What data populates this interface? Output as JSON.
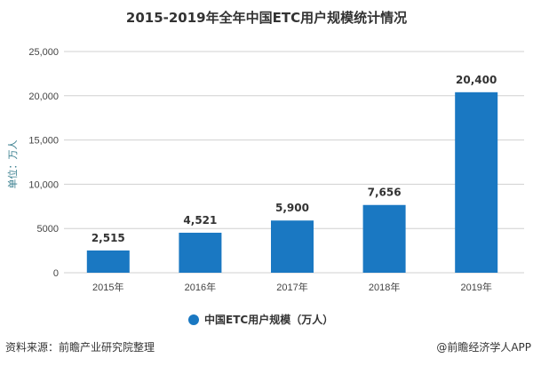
{
  "chart_data": {
    "type": "bar",
    "title": "2015-2019年全年中国ETC用户规模统计情况",
    "categories": [
      "2015年",
      "2016年",
      "2017年",
      "2018年",
      "2019年"
    ],
    "series": [
      {
        "name": "中国ETC用户规模（万人）",
        "values": [
          2515,
          4521,
          5900,
          7656,
          20400
        ]
      }
    ],
    "data_labels": [
      "2,515",
      "4,521",
      "5,900",
      "7,656",
      "20,400"
    ],
    "ylabel": "单位：万人",
    "xlabel": "",
    "ylim": [
      0,
      25000
    ],
    "yticks": [
      0,
      5000,
      10000,
      15000,
      20000,
      25000
    ],
    "ytick_labels": [
      "0",
      "5000",
      "10,000",
      "15,000",
      "20,000",
      "25,000"
    ],
    "grid": true,
    "legend_position": "bottom",
    "bar_color": "#1a78c2"
  },
  "footer": {
    "source": "资料来源：前瞻产业研究院整理",
    "credit": "@前瞻经济学人APP"
  }
}
